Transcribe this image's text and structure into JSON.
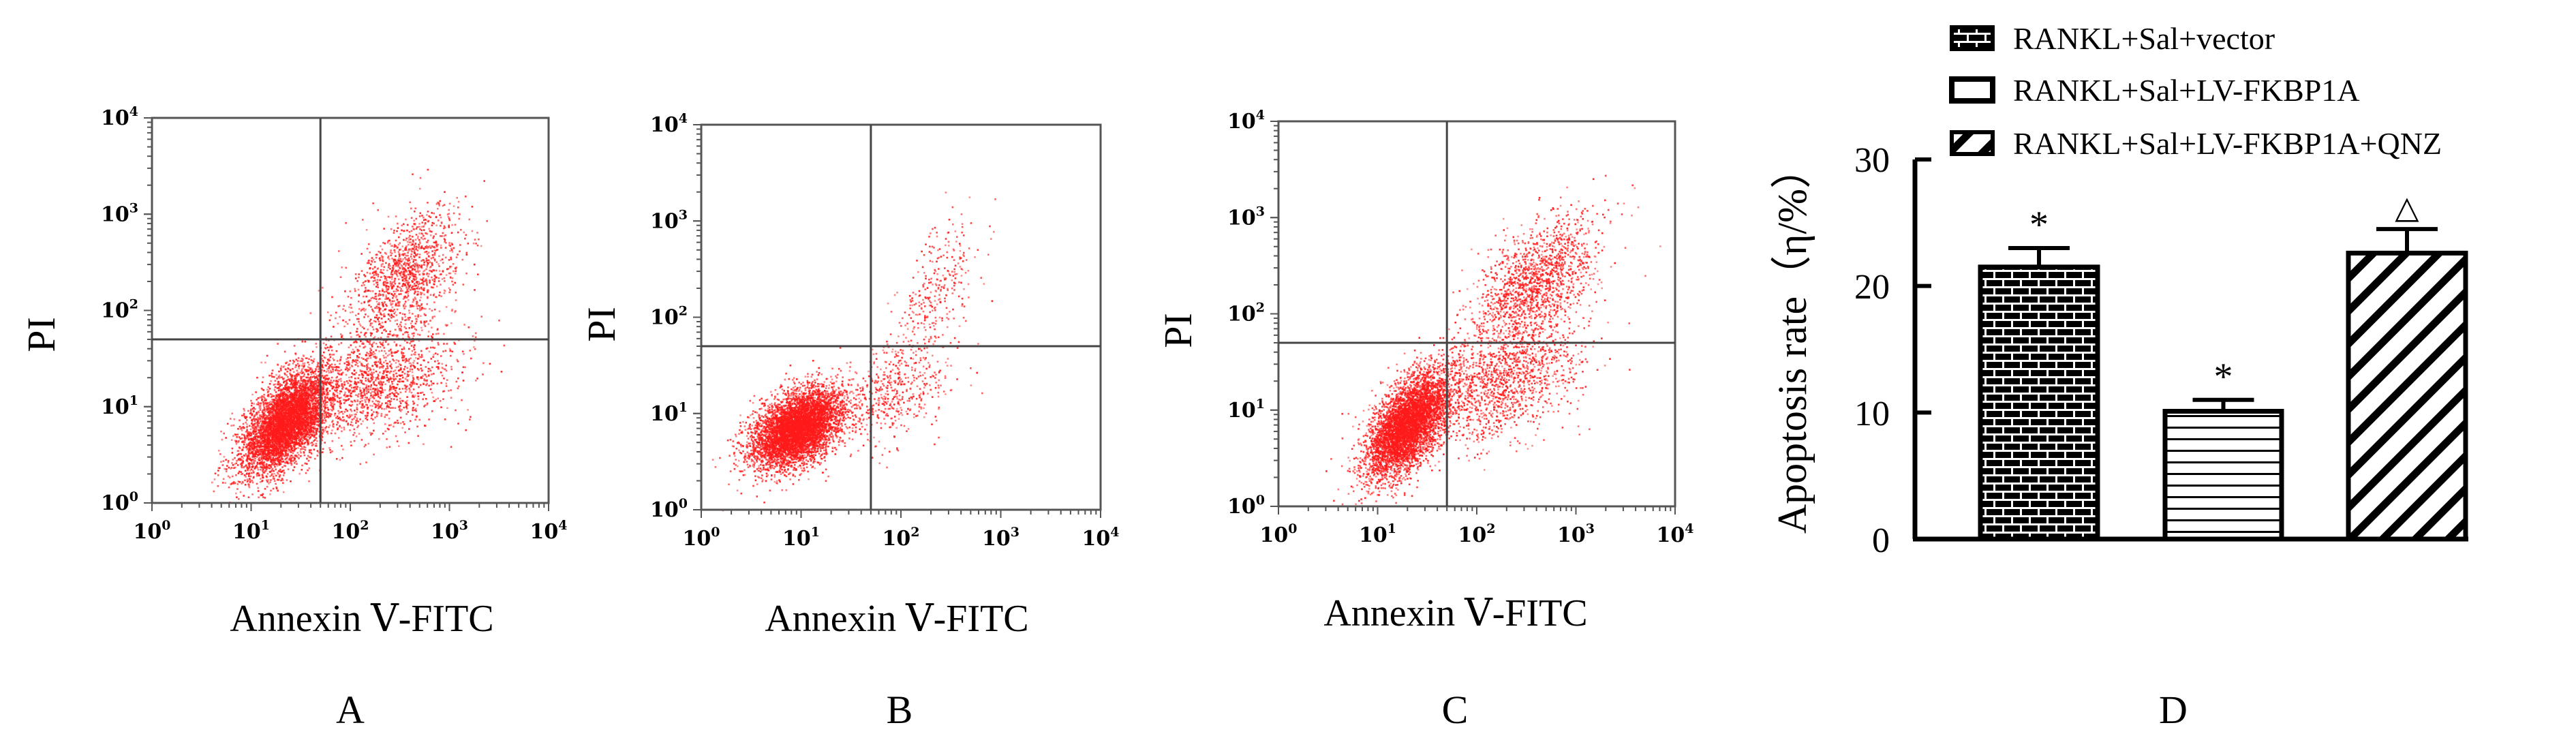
{
  "colors": {
    "dot": "#ff1a1a",
    "axis": "#555555",
    "gate": "#444444",
    "ink": "#000000"
  },
  "chart_data": [
    {
      "type": "scatter",
      "panel_letter": "A",
      "ylabel": "PI",
      "xlabel": "Annexin Ⅴ-FITC",
      "xscale": "log",
      "yscale": "log",
      "xlim": [
        1,
        10000
      ],
      "ylim": [
        1,
        10000
      ],
      "tick_labels": [
        {
          "base": "10",
          "exp": "0"
        },
        {
          "base": "10",
          "exp": "1"
        },
        {
          "base": "10",
          "exp": "2"
        },
        {
          "base": "10",
          "exp": "3"
        },
        {
          "base": "10",
          "exp": "4"
        }
      ],
      "quadrant_gate": {
        "x": 50,
        "y": 50
      },
      "populations": [
        {
          "name": "viable",
          "center_log": [
            1.35,
            0.85
          ],
          "spread_log": [
            0.22,
            0.22
          ],
          "tilt": 0.7,
          "count": 5200
        },
        {
          "name": "early_apoptotic",
          "center_log": [
            2.25,
            1.25
          ],
          "spread_log": [
            0.4,
            0.28
          ],
          "tilt": 0.4,
          "count": 1400
        },
        {
          "name": "late_apoptotic",
          "center_log": [
            2.55,
            2.35
          ],
          "spread_log": [
            0.28,
            0.3
          ],
          "tilt": 0.6,
          "count": 1300
        }
      ]
    },
    {
      "type": "scatter",
      "panel_letter": "B",
      "ylabel": "PI",
      "xlabel": "Annexin Ⅴ-FITC",
      "xscale": "log",
      "yscale": "log",
      "xlim": [
        1,
        10000
      ],
      "ylim": [
        1,
        10000
      ],
      "tick_labels": [
        {
          "base": "10",
          "exp": "0"
        },
        {
          "base": "10",
          "exp": "1"
        },
        {
          "base": "10",
          "exp": "2"
        },
        {
          "base": "10",
          "exp": "3"
        },
        {
          "base": "10",
          "exp": "4"
        }
      ],
      "quadrant_gate": {
        "x": 50,
        "y": 50
      },
      "populations": [
        {
          "name": "viable",
          "center_log": [
            0.95,
            0.85
          ],
          "spread_log": [
            0.22,
            0.18
          ],
          "tilt": 0.5,
          "count": 5600
        },
        {
          "name": "early_apoptotic",
          "center_log": [
            1.9,
            1.2
          ],
          "spread_log": [
            0.3,
            0.25
          ],
          "tilt": 0.4,
          "count": 500
        },
        {
          "name": "late_apoptotic",
          "center_log": [
            2.35,
            2.3
          ],
          "spread_log": [
            0.22,
            0.3
          ],
          "tilt": 0.8,
          "count": 300
        }
      ]
    },
    {
      "type": "scatter",
      "panel_letter": "C",
      "ylabel": "PI",
      "xlabel": "Annexin Ⅴ-FITC",
      "xscale": "log",
      "yscale": "log",
      "xlim": [
        1,
        10000
      ],
      "ylim": [
        1,
        10000
      ],
      "tick_labels": [
        {
          "base": "10",
          "exp": "0"
        },
        {
          "base": "10",
          "exp": "1"
        },
        {
          "base": "10",
          "exp": "2"
        },
        {
          "base": "10",
          "exp": "3"
        },
        {
          "base": "10",
          "exp": "4"
        }
      ],
      "quadrant_gate": {
        "x": 50,
        "y": 50
      },
      "populations": [
        {
          "name": "viable",
          "center_log": [
            1.3,
            0.85
          ],
          "spread_log": [
            0.2,
            0.22
          ],
          "tilt": 0.7,
          "count": 5000
        },
        {
          "name": "early_apoptotic",
          "center_log": [
            2.2,
            1.3
          ],
          "spread_log": [
            0.42,
            0.3
          ],
          "tilt": 0.45,
          "count": 1500
        },
        {
          "name": "late_apoptotic",
          "center_log": [
            2.6,
            2.35
          ],
          "spread_log": [
            0.3,
            0.3
          ],
          "tilt": 0.6,
          "count": 1500
        }
      ]
    },
    {
      "type": "bar",
      "panel_letter": "D",
      "ylabel": "Apoptosis rate（η/%）",
      "xlabel": "",
      "ylim": [
        0,
        30
      ],
      "yticks": [
        "0",
        "10",
        "20",
        "30"
      ],
      "categories": [
        "RANKL+Sal+vector",
        "RANKL+Sal+LV-FKBP1A",
        "RANKL+Sal+LV-FKBP1A+QNZ"
      ],
      "values": [
        21.5,
        10.1,
        22.6
      ],
      "errors": [
        1.5,
        0.9,
        1.9
      ],
      "markers": [
        "*",
        "*",
        "△"
      ],
      "patterns": [
        "brick",
        "horizontal",
        "diagonal"
      ],
      "legend": {
        "position": "top-right",
        "entries": [
          "RANKL+Sal+vector",
          "RANKL+Sal+LV-FKBP1A",
          "RANKL+Sal+LV-FKBP1A+QNZ"
        ]
      },
      "grid": false
    }
  ]
}
